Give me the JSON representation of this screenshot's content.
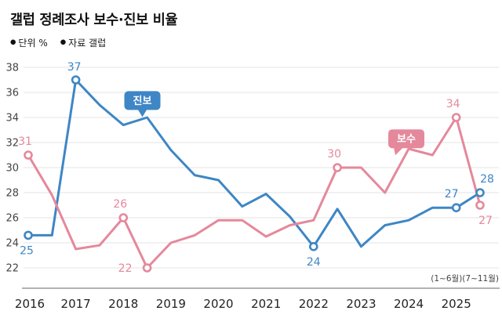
{
  "header": {
    "title": "갤럽 정례조사 보수·진보 비율",
    "legend": [
      {
        "bullet": "●",
        "label": "단위 %"
      },
      {
        "bullet": "●",
        "label": "자료 갤럽"
      }
    ]
  },
  "chart_data": {
    "type": "line",
    "title": "갤럽 정례조사 보수·진보 비율",
    "unit": "%",
    "source": "갤럽",
    "xlim": [
      2016,
      2025.5
    ],
    "ylim": [
      22,
      38
    ],
    "yticks": [
      22,
      24,
      26,
      28,
      30,
      32,
      34,
      36,
      38
    ],
    "xticks": [
      2016,
      2017,
      2018,
      2019,
      2020,
      2021,
      2022,
      2023,
      2024,
      2025
    ],
    "grid": true,
    "annotation": "(1~6월)(7~11월)",
    "x": [
      2016,
      2016.5,
      2017,
      2017.5,
      2018,
      2018.5,
      2019,
      2019.5,
      2020,
      2020.5,
      2021,
      2021.5,
      2022,
      2022.5,
      2023,
      2023.5,
      2024,
      2024.5,
      2025,
      2025.5
    ],
    "series": [
      {
        "name": "진보",
        "color": "#3e86c5",
        "values": [
          24.6,
          24.6,
          37,
          35,
          33.4,
          34,
          31.4,
          29.4,
          29,
          26.9,
          27.9,
          26.1,
          23.7,
          26.7,
          23.7,
          25.4,
          25.8,
          26.8,
          26.8,
          28
        ],
        "points": [
          {
            "x": 2016,
            "v": 24.6,
            "label": "25",
            "dx": -2,
            "dy": 24
          },
          {
            "x": 2017,
            "v": 37,
            "label": "37",
            "dx": -2,
            "dy": -12
          },
          {
            "x": 2022,
            "v": 23.7,
            "label": "24",
            "dx": 0,
            "dy": 24
          },
          {
            "x": 2025,
            "v": 26.8,
            "label": "27",
            "dx": -6,
            "dy": -13
          },
          {
            "x": 2025.5,
            "v": 28,
            "label": "28",
            "dx": 9,
            "dy": -13
          }
        ]
      },
      {
        "name": "보수",
        "color": "#e5889b",
        "values": [
          31,
          27.8,
          23.5,
          23.8,
          26,
          22,
          24,
          24.6,
          25.8,
          25.8,
          24.5,
          25.4,
          25.8,
          30,
          30,
          28,
          31.5,
          31,
          34,
          27
        ],
        "points": [
          {
            "x": 2016,
            "v": 31,
            "label": "31",
            "dx": -4,
            "dy": -13
          },
          {
            "x": 2018,
            "v": 26,
            "label": "26",
            "dx": -4,
            "dy": -13
          },
          {
            "x": 2018.5,
            "v": 22,
            "label": "22",
            "dx": -28,
            "dy": 5
          },
          {
            "x": 2022.5,
            "v": 30,
            "label": "30",
            "dx": -4,
            "dy": -13
          },
          {
            "x": 2025,
            "v": 34,
            "label": "34",
            "dx": -4,
            "dy": -13
          },
          {
            "x": 2025.5,
            "v": 27,
            "label": "27",
            "dx": 7,
            "dy": 24
          }
        ]
      }
    ],
    "badges": [
      {
        "label": "진보",
        "color": "#3e86c5",
        "x": 2018.4,
        "v": 35.35,
        "taildx": 0,
        "tipdx": 0
      },
      {
        "label": "보수",
        "color": "#e5889b",
        "x": 2023.95,
        "v": 32.3,
        "taildx": -10,
        "tipdx": -4
      }
    ]
  }
}
